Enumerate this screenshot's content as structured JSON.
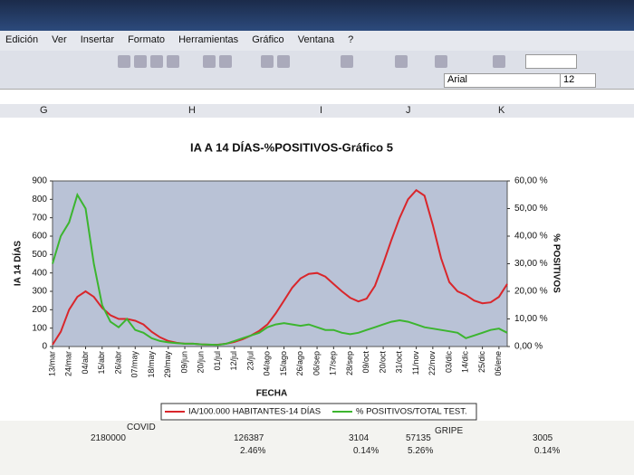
{
  "menu": [
    "Edición",
    "Ver",
    "Insertar",
    "Formato",
    "Herramientas",
    "Gráfico",
    "Ventana",
    "?"
  ],
  "font": {
    "name": "Arial",
    "size": "12"
  },
  "columns": [
    "G",
    "H",
    "I",
    "J",
    "K"
  ],
  "sheet": {
    "labels": [
      "COVID",
      "GRIPE"
    ],
    "rows": [
      [
        "2180000",
        "126387",
        "3104",
        "57135",
        "3005"
      ],
      [
        "2.46%",
        "0.14%",
        "5.26%",
        "0.14%"
      ]
    ]
  },
  "chart_data": {
    "type": "line",
    "title": "IA A 14 DÍAS-%POSITIVOS-Gráfico 5",
    "x_label": "FECHA",
    "y_label": "IA 14 DÍAS",
    "y2_label": "% POSITIVOS",
    "categories": [
      "13/mar",
      null,
      "24/mar",
      null,
      "04/abr",
      null,
      "15/abr",
      null,
      "26/abr",
      null,
      "07/may",
      null,
      "18/may",
      null,
      "29/may",
      null,
      "09/jun",
      null,
      "20/jun",
      null,
      "01/jul",
      null,
      "12/jul",
      null,
      "23/jul",
      null,
      "04/ago",
      null,
      "15/ago",
      null,
      "26/ago",
      null,
      "06/sep",
      null,
      "17/sep",
      null,
      "28/sep",
      null,
      "09/oct",
      null,
      "20/oct",
      null,
      "31/oct",
      null,
      "11/nov",
      null,
      "22/nov",
      null,
      "03/dic",
      null,
      "14/dic",
      null,
      "25/dic",
      null,
      "06/ene",
      null
    ],
    "series": [
      {
        "name": "IA/100.000 HABITANTES-14 DÍAS",
        "color": "#d9262b",
        "values": [
          10,
          80,
          200,
          270,
          300,
          270,
          210,
          170,
          150,
          150,
          140,
          120,
          80,
          50,
          30,
          20,
          15,
          15,
          12,
          10,
          10,
          15,
          25,
          40,
          60,
          85,
          120,
          180,
          250,
          320,
          370,
          395,
          400,
          380,
          340,
          300,
          265,
          245,
          260,
          330,
          450,
          580,
          700,
          800,
          850,
          820,
          660,
          480,
          350,
          300,
          280,
          250,
          235,
          240,
          270,
          340
        ]
      },
      {
        "name": "% POSITIVOS/TOTAL TEST.",
        "color": "#3cb52f",
        "axis": "y2",
        "values": [
          30,
          40,
          45,
          55,
          50,
          30,
          15,
          9,
          7,
          10,
          6,
          5,
          3,
          2,
          1.5,
          1.2,
          1,
          1,
          0.8,
          0.7,
          0.6,
          1,
          2,
          3,
          4,
          5,
          7,
          8,
          8.5,
          8,
          7.5,
          8,
          7,
          6,
          6,
          5,
          4.5,
          5,
          6,
          7,
          8,
          9,
          9.5,
          9,
          8,
          7,
          6.5,
          6,
          5.5,
          5,
          3,
          4,
          5,
          6,
          6.5,
          5
        ]
      }
    ],
    "ylim": [
      0,
      900
    ],
    "yticks": [
      0,
      100,
      200,
      300,
      400,
      500,
      600,
      700,
      800,
      900
    ],
    "y2lim": [
      0,
      60
    ],
    "y2ticks": [
      {
        "value": 0,
        "label": "0,00 %"
      },
      {
        "value": 10,
        "label": "10,00 %"
      },
      {
        "value": 20,
        "label": "20,00 %"
      },
      {
        "value": 30,
        "label": "30,00 %"
      },
      {
        "value": 40,
        "label": "40,00 %"
      },
      {
        "value": 50,
        "label": "50,00 %"
      },
      {
        "value": 60,
        "label": "60,00 %"
      }
    ],
    "plot_color": "#b9c2d6",
    "legend": "bottom"
  }
}
